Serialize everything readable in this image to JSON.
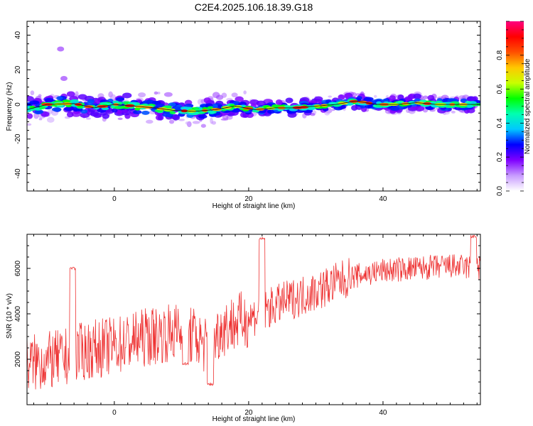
{
  "figure": {
    "title": "C2E4.2025.106.18.39.G18"
  },
  "chart_data": [
    {
      "type": "heatmap",
      "title": "C2E4.2025.106.18.39.G18",
      "xlabel": "Height of straight line (km)",
      "ylabel": "Frequency (Hz)",
      "xlim": [
        -13,
        54.5
      ],
      "ylim": [
        -50,
        48
      ],
      "x_ticks": [
        0,
        20,
        40
      ],
      "y_ticks": [
        -40,
        -20,
        0,
        20,
        40
      ],
      "grid": false,
      "colorbar": {
        "label": "Normalized spectral amplitude",
        "range": [
          0,
          1
        ],
        "ticks": [
          0.0,
          0.2,
          0.4,
          0.6,
          0.8
        ],
        "tick_labels": [
          "0.0",
          "0.2",
          "0.4",
          "0.6",
          "0.8"
        ],
        "colors": [
          "#ffffff",
          "#c89bff",
          "#7f00ff",
          "#0000ff",
          "#00c8ff",
          "#00ffb0",
          "#00ff00",
          "#c8ff00",
          "#ffc800",
          "#ff5000",
          "#ff0000",
          "#ff0080"
        ]
      },
      "doppler_track": {
        "x": [
          -13,
          -10,
          -6,
          -3,
          0,
          3,
          6,
          9,
          12,
          15,
          18,
          21,
          24,
          27,
          30,
          33,
          36,
          39,
          42,
          45,
          48,
          51,
          54
        ],
        "y": [
          -3,
          0,
          0.5,
          -2,
          0,
          -1,
          -2,
          -3.5,
          -4,
          -3,
          -1,
          -3,
          -2,
          -2,
          -1,
          0,
          2,
          0,
          0,
          1,
          0,
          0,
          0
        ]
      },
      "outliers": [
        {
          "x": -8,
          "y": 32
        },
        {
          "x": -7.5,
          "y": 15
        }
      ]
    },
    {
      "type": "line",
      "xlabel": "Height of straight line (km)",
      "ylabel": "SNR (10 * v/v)",
      "xlim": [
        -13,
        54.5
      ],
      "ylim": [
        0,
        7500
      ],
      "x_ticks": [
        0,
        20,
        40
      ],
      "y_ticks": [
        2000,
        4000,
        6000
      ],
      "grid": false,
      "color": "#ee3333",
      "baseline": {
        "x": [
          -13,
          -8,
          -4,
          0,
          5,
          9,
          12,
          14,
          16,
          20,
          25,
          30,
          35,
          40,
          45,
          50,
          54.5
        ],
        "y": [
          1800,
          2000,
          2400,
          2600,
          3000,
          3200,
          3000,
          2500,
          3400,
          3800,
          4500,
          5000,
          5600,
          5900,
          6000,
          6100,
          6000
        ]
      },
      "features": [
        {
          "x": 14.3,
          "y": 900
        },
        {
          "x": 10.6,
          "y": 1800
        },
        {
          "x": -6.2,
          "y": 6000
        },
        {
          "x": 22,
          "y": 7300
        },
        {
          "x": 53.5,
          "y": 7400
        }
      ]
    }
  ]
}
